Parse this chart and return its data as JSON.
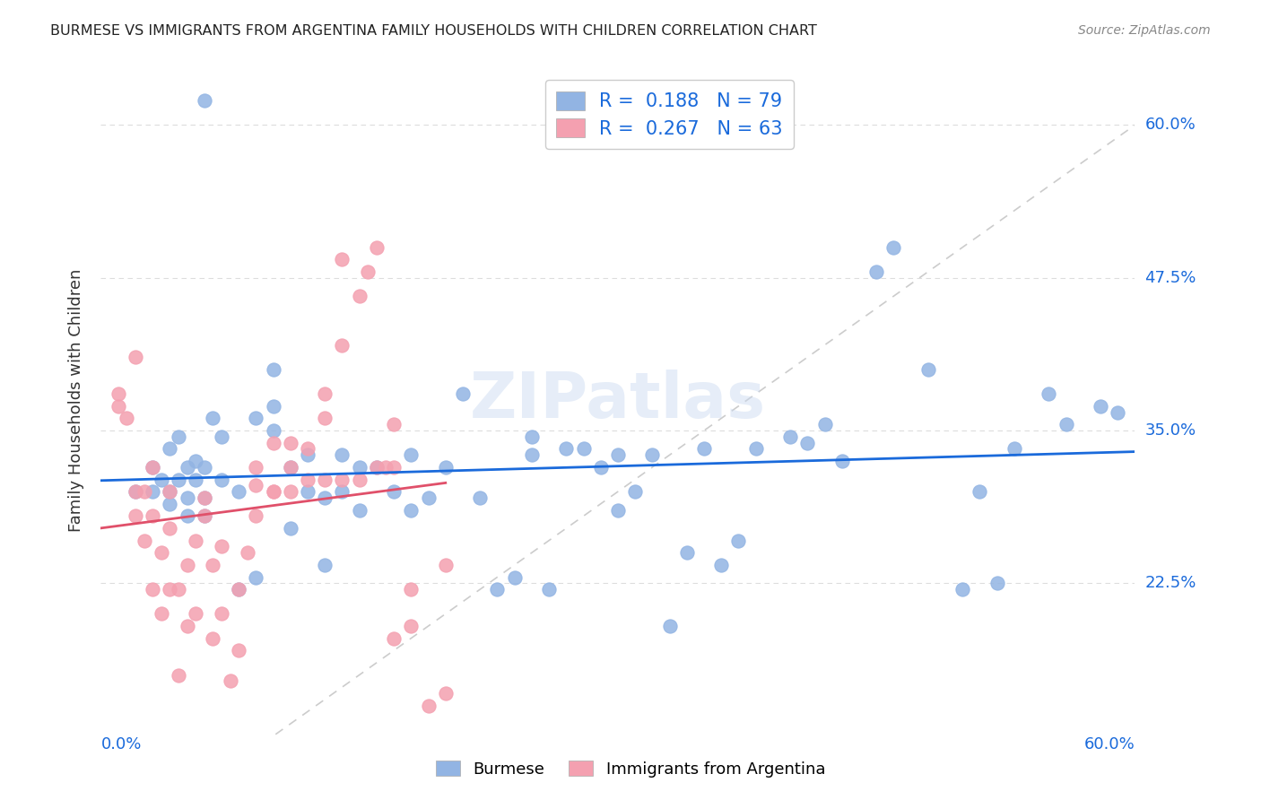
{
  "title": "BURMESE VS IMMIGRANTS FROM ARGENTINA FAMILY HOUSEHOLDS WITH CHILDREN CORRELATION CHART",
  "source": "Source: ZipAtlas.com",
  "ylabel": "Family Households with Children",
  "ytick_values": [
    0.225,
    0.35,
    0.475,
    0.6
  ],
  "ytick_labels": [
    "22.5%",
    "35.0%",
    "47.5%",
    "60.0%"
  ],
  "xlim": [
    0.0,
    0.6
  ],
  "ylim": [
    0.1,
    0.65
  ],
  "legend_burmese_R": "0.188",
  "legend_burmese_N": "79",
  "legend_argentina_R": "0.267",
  "legend_argentina_N": "63",
  "burmese_color": "#92b4e3",
  "argentina_color": "#f4a0b0",
  "burmese_line_color": "#1a6adb",
  "argentina_line_color": "#e0506a",
  "diagonal_color": "#cccccc",
  "watermark": "ZIPatlas",
  "burmese_scatter_x": [
    0.02,
    0.03,
    0.03,
    0.035,
    0.04,
    0.04,
    0.04,
    0.045,
    0.045,
    0.05,
    0.05,
    0.05,
    0.055,
    0.055,
    0.06,
    0.06,
    0.06,
    0.065,
    0.07,
    0.07,
    0.08,
    0.08,
    0.09,
    0.09,
    0.1,
    0.1,
    0.1,
    0.11,
    0.11,
    0.12,
    0.12,
    0.13,
    0.13,
    0.14,
    0.14,
    0.15,
    0.15,
    0.16,
    0.17,
    0.18,
    0.18,
    0.19,
    0.2,
    0.21,
    0.22,
    0.23,
    0.24,
    0.25,
    0.25,
    0.26,
    0.27,
    0.28,
    0.29,
    0.3,
    0.3,
    0.31,
    0.32,
    0.33,
    0.34,
    0.35,
    0.36,
    0.37,
    0.38,
    0.4,
    0.41,
    0.42,
    0.43,
    0.45,
    0.46,
    0.48,
    0.5,
    0.51,
    0.52,
    0.53,
    0.55,
    0.56,
    0.58,
    0.59,
    0.06
  ],
  "burmese_scatter_y": [
    0.3,
    0.3,
    0.32,
    0.31,
    0.29,
    0.3,
    0.335,
    0.31,
    0.345,
    0.28,
    0.295,
    0.32,
    0.31,
    0.325,
    0.28,
    0.295,
    0.32,
    0.36,
    0.31,
    0.345,
    0.3,
    0.22,
    0.23,
    0.36,
    0.35,
    0.37,
    0.4,
    0.32,
    0.27,
    0.3,
    0.33,
    0.24,
    0.295,
    0.3,
    0.33,
    0.285,
    0.32,
    0.32,
    0.3,
    0.285,
    0.33,
    0.295,
    0.32,
    0.38,
    0.295,
    0.22,
    0.23,
    0.345,
    0.33,
    0.22,
    0.335,
    0.335,
    0.32,
    0.33,
    0.285,
    0.3,
    0.33,
    0.19,
    0.25,
    0.335,
    0.24,
    0.26,
    0.335,
    0.345,
    0.34,
    0.355,
    0.325,
    0.48,
    0.5,
    0.4,
    0.22,
    0.3,
    0.225,
    0.335,
    0.38,
    0.355,
    0.37,
    0.365,
    0.62
  ],
  "argentina_scatter_x": [
    0.01,
    0.01,
    0.015,
    0.02,
    0.02,
    0.02,
    0.025,
    0.025,
    0.03,
    0.03,
    0.03,
    0.035,
    0.035,
    0.04,
    0.04,
    0.04,
    0.045,
    0.045,
    0.05,
    0.05,
    0.055,
    0.055,
    0.06,
    0.06,
    0.065,
    0.065,
    0.07,
    0.07,
    0.075,
    0.08,
    0.08,
    0.085,
    0.09,
    0.09,
    0.09,
    0.1,
    0.1,
    0.11,
    0.11,
    0.12,
    0.13,
    0.13,
    0.14,
    0.14,
    0.15,
    0.155,
    0.16,
    0.165,
    0.17,
    0.17,
    0.18,
    0.18,
    0.19,
    0.2,
    0.2,
    0.1,
    0.11,
    0.12,
    0.13,
    0.14,
    0.15,
    0.16,
    0.17
  ],
  "argentina_scatter_y": [
    0.37,
    0.38,
    0.36,
    0.28,
    0.3,
    0.41,
    0.26,
    0.3,
    0.22,
    0.28,
    0.32,
    0.2,
    0.25,
    0.22,
    0.27,
    0.3,
    0.15,
    0.22,
    0.19,
    0.24,
    0.2,
    0.26,
    0.28,
    0.295,
    0.18,
    0.24,
    0.2,
    0.255,
    0.145,
    0.17,
    0.22,
    0.25,
    0.28,
    0.305,
    0.32,
    0.3,
    0.34,
    0.32,
    0.34,
    0.335,
    0.36,
    0.38,
    0.42,
    0.49,
    0.46,
    0.48,
    0.5,
    0.32,
    0.355,
    0.18,
    0.19,
    0.22,
    0.125,
    0.24,
    0.135,
    0.3,
    0.3,
    0.31,
    0.31,
    0.31,
    0.31,
    0.32,
    0.32
  ],
  "background_color": "#ffffff",
  "grid_color": "#dddddd"
}
